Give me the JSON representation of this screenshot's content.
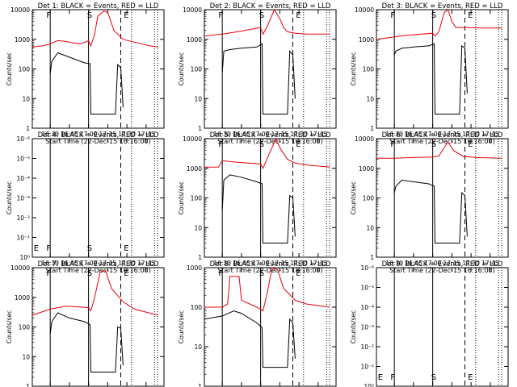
{
  "figure": {
    "event_color": "#000000",
    "lld_color": "#e8000b",
    "xticks": [
      "16:30",
      "16:45",
      "17:00",
      "17:15",
      "17:30",
      "17:45"
    ],
    "xlabel": "Start Time (22-Dec-15 16:16:00)",
    "ylabel": "Counts/sec"
  },
  "chart_data": [
    {
      "type": "line",
      "title": "Det 1: BLACK = Events, RED = LLD",
      "ylim": [
        1,
        10000
      ],
      "yscale": "log",
      "yticks": [
        "1",
        "10",
        "100",
        "1000",
        "10000"
      ],
      "marker_labels": [
        "F",
        "S",
        "E"
      ],
      "series": [
        {
          "name": "Events",
          "x": [
            16.5,
            16.52,
            16.6,
            16.75,
            16.95,
            17.02,
            17.03,
            17.08,
            17.15,
            17.25,
            17.35,
            17.38,
            17.42,
            17.45
          ],
          "y": [
            70,
            180,
            350,
            250,
            160,
            150,
            3,
            3,
            3,
            3,
            3,
            140,
            110,
            5
          ]
        },
        {
          "name": "LLD",
          "x": [
            16.27,
            16.4,
            16.5,
            16.6,
            16.7,
            16.8,
            16.9,
            17.0,
            17.03,
            17.08,
            17.12,
            17.2,
            17.25,
            17.33,
            17.45,
            17.6,
            17.8,
            17.9
          ],
          "y": [
            550,
            600,
            700,
            900,
            850,
            750,
            700,
            900,
            600,
            1500,
            6000,
            9000,
            8000,
            2000,
            1000,
            800,
            600,
            550
          ]
        }
      ]
    },
    {
      "type": "line",
      "title": "Det 2: BLACK = Events, RED = LLD",
      "ylim": [
        1,
        10000
      ],
      "yscale": "log",
      "yticks": [
        "1",
        "10",
        "100",
        "1000",
        "10000"
      ],
      "marker_labels": [
        "F",
        "S",
        "E"
      ],
      "series": [
        {
          "name": "Events",
          "x": [
            16.5,
            16.52,
            16.6,
            16.75,
            16.95,
            17.02,
            17.03,
            17.08,
            17.15,
            17.25,
            17.35,
            17.38,
            17.42,
            17.45
          ],
          "y": [
            80,
            400,
            450,
            500,
            550,
            700,
            3,
            3,
            3,
            3,
            3,
            400,
            300,
            10
          ]
        },
        {
          "name": "LLD",
          "x": [
            16.27,
            16.5,
            16.7,
            17.0,
            17.03,
            17.08,
            17.18,
            17.25,
            17.3,
            17.35,
            17.45,
            17.6,
            17.9
          ],
          "y": [
            1300,
            1500,
            1800,
            2500,
            1500,
            2500,
            10000,
            5000,
            2500,
            1800,
            1600,
            1500,
            1500
          ]
        }
      ]
    },
    {
      "type": "line",
      "title": "Det 3: BLACK = Events, RED = LLD",
      "ylim": [
        1,
        10000
      ],
      "yscale": "log",
      "yticks": [
        "1",
        "10",
        "100",
        "1000",
        "10000"
      ],
      "marker_labels": [
        "F",
        "S",
        "E"
      ],
      "series": [
        {
          "name": "Events",
          "x": [
            16.5,
            16.52,
            16.6,
            16.75,
            16.95,
            17.02,
            17.03,
            17.08,
            17.15,
            17.25,
            17.35,
            17.38,
            17.42,
            17.45
          ],
          "y": [
            300,
            400,
            500,
            550,
            600,
            700,
            3,
            3,
            3,
            3,
            3,
            600,
            500,
            15
          ]
        },
        {
          "name": "LLD",
          "x": [
            16.27,
            16.5,
            16.7,
            17.0,
            17.03,
            17.08,
            17.15,
            17.2,
            17.25,
            17.3,
            17.45,
            17.6,
            17.9
          ],
          "y": [
            1000,
            1200,
            1400,
            1600,
            1300,
            1800,
            8000,
            10000,
            4000,
            2500,
            2500,
            2400,
            2400
          ]
        }
      ]
    },
    {
      "type": "line",
      "title": "Det 4: BLACK = Events, RED = LLD",
      "ylim": [
        1,
        1e-06
      ],
      "yscale": "log",
      "yticks": [
        "10⁰",
        "10⁻¹",
        "10⁻²",
        "10⁻³",
        "10⁻⁴",
        "10⁻⁵",
        "10⁻⁶"
      ],
      "marker_labels": [
        "E",
        "F",
        "S",
        "E"
      ],
      "series": []
    },
    {
      "type": "line",
      "title": "Det 5: BLACK = Events, RED = LLD",
      "ylim": [
        1,
        10000
      ],
      "yscale": "log",
      "yticks": [
        "1",
        "10",
        "100",
        "1000",
        "10000"
      ],
      "marker_labels": [
        "F",
        "S",
        "E"
      ],
      "series": [
        {
          "name": "Events",
          "x": [
            16.5,
            16.52,
            16.6,
            16.75,
            16.95,
            17.02,
            17.03,
            17.08,
            17.15,
            17.25,
            17.35,
            17.38,
            17.42,
            17.45
          ],
          "y": [
            40,
            400,
            600,
            500,
            350,
            300,
            3,
            3,
            3,
            3,
            3,
            120,
            100,
            5
          ]
        },
        {
          "name": "LLD",
          "x": [
            16.27,
            16.45,
            16.5,
            16.7,
            17.0,
            17.03,
            17.08,
            17.2,
            17.25,
            17.35,
            17.45,
            17.6,
            17.9
          ],
          "y": [
            1100,
            1100,
            1800,
            1600,
            1400,
            1000,
            2000,
            10000,
            5000,
            2000,
            1500,
            1300,
            1100
          ]
        }
      ]
    },
    {
      "type": "line",
      "title": "Det 6: BLACK = Events, RED = LLD",
      "ylim": [
        1,
        10000
      ],
      "yscale": "log",
      "yticks": [
        "1",
        "10",
        "100",
        "1000",
        "10000"
      ],
      "marker_labels": [
        "F",
        "S",
        "E"
      ],
      "series": [
        {
          "name": "Events",
          "x": [
            16.5,
            16.52,
            16.6,
            16.75,
            16.95,
            17.02,
            17.03,
            17.08,
            17.15,
            17.25,
            17.35,
            17.38,
            17.42,
            17.45
          ],
          "y": [
            150,
            250,
            400,
            350,
            300,
            250,
            3,
            3,
            3,
            3,
            3,
            150,
            120,
            5
          ]
        },
        {
          "name": "LLD",
          "x": [
            16.27,
            16.5,
            16.7,
            17.0,
            17.08,
            17.15,
            17.2,
            17.27,
            17.4,
            17.6,
            17.9
          ],
          "y": [
            2200,
            2200,
            2300,
            2400,
            2600,
            5000,
            8000,
            4000,
            2500,
            2300,
            2200
          ]
        }
      ]
    },
    {
      "type": "line",
      "title": "Det 7: BLACK = Events, RED = LLD",
      "ylim": [
        1,
        10000
      ],
      "yscale": "log",
      "yticks": [
        "1",
        "10",
        "100",
        "1000",
        "10000"
      ],
      "marker_labels": [
        "F",
        "S",
        "E"
      ],
      "series": [
        {
          "name": "Events",
          "x": [
            16.5,
            16.52,
            16.6,
            16.75,
            16.95,
            17.02,
            17.03,
            17.08,
            17.15,
            17.25,
            17.35,
            17.38,
            17.42,
            17.45
          ],
          "y": [
            60,
            150,
            300,
            200,
            150,
            120,
            3,
            3,
            3,
            3,
            3,
            100,
            90,
            5
          ]
        },
        {
          "name": "LLD",
          "x": [
            16.27,
            16.5,
            16.7,
            17.0,
            17.03,
            17.08,
            17.15,
            17.22,
            17.3,
            17.45,
            17.6,
            17.9
          ],
          "y": [
            250,
            400,
            500,
            450,
            350,
            1000,
            7000,
            8000,
            2000,
            700,
            400,
            250
          ]
        }
      ]
    },
    {
      "type": "line",
      "title": "Det 8: BLACK = Events, RED = LLD",
      "ylim": [
        1,
        1000
      ],
      "yscale": "log",
      "yticks": [
        "1",
        "10",
        "100",
        "1000"
      ],
      "marker_labels": [
        "F",
        "S",
        "E"
      ],
      "series": [
        {
          "name": "Events",
          "x": [
            16.27,
            16.5,
            16.65,
            16.75,
            16.95,
            17.02,
            17.03,
            17.08,
            17.15,
            17.25,
            17.35,
            17.38,
            17.42,
            17.45
          ],
          "y": [
            50,
            60,
            80,
            70,
            40,
            30,
            3,
            3,
            3,
            3,
            3,
            50,
            40,
            5
          ]
        },
        {
          "name": "LLD",
          "x": [
            16.27,
            16.5,
            16.57,
            16.6,
            16.72,
            16.75,
            16.95,
            17.03,
            17.08,
            17.15,
            17.22,
            17.3,
            17.45,
            17.6,
            17.9
          ],
          "y": [
            100,
            100,
            120,
            600,
            600,
            150,
            100,
            80,
            200,
            1000,
            900,
            300,
            150,
            120,
            100
          ]
        }
      ]
    },
    {
      "type": "line",
      "title": "Det 9: BLACK = Events, RED = LLD",
      "ylim": [
        1,
        1e-06
      ],
      "yscale": "log",
      "yticks": [
        "10⁰",
        "10⁻¹",
        "10⁻²",
        "10⁻³",
        "10⁻⁴",
        "10⁻⁵",
        "10⁻⁶"
      ],
      "marker_labels": [
        "E",
        "F",
        "S",
        "E"
      ],
      "series": []
    }
  ]
}
